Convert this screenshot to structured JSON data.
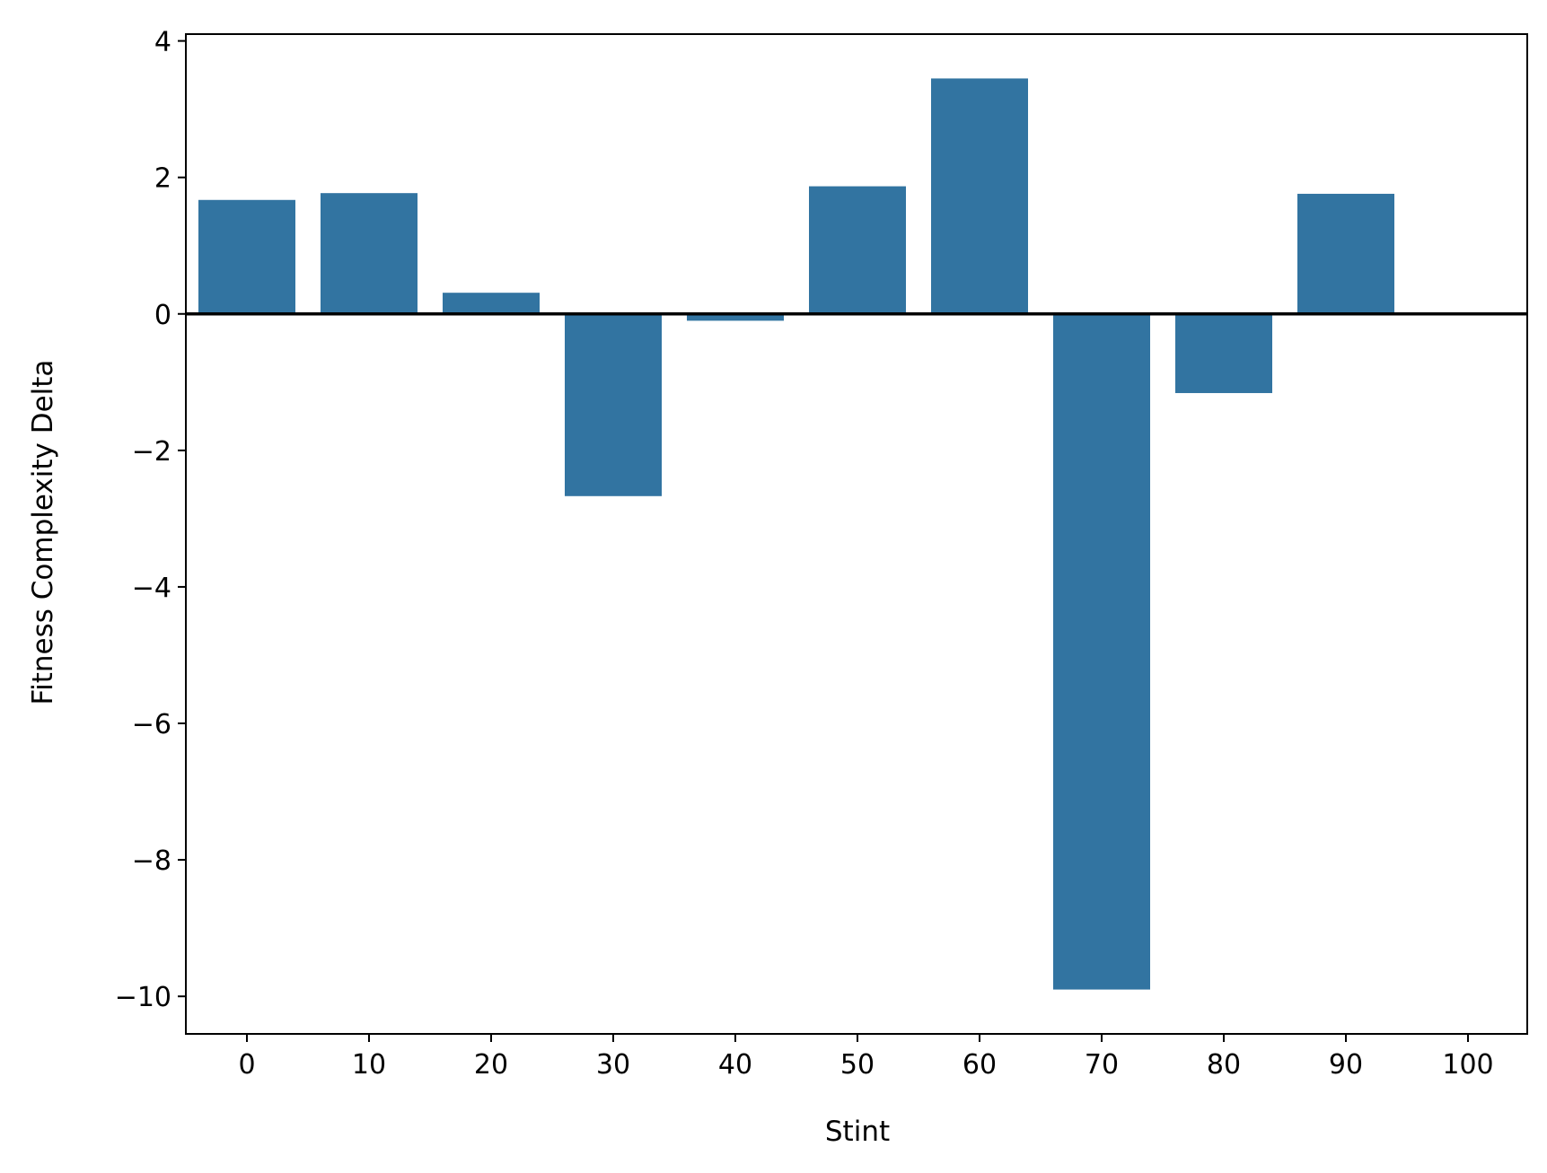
{
  "chart_data": {
    "type": "bar",
    "title": "",
    "xlabel": "Stint",
    "ylabel": "Fitness Complexity Delta",
    "categories": [
      0,
      10,
      20,
      30,
      40,
      50,
      60,
      70,
      80,
      90,
      100
    ],
    "x_tick_labels": [
      "0",
      "10",
      "20",
      "30",
      "40",
      "50",
      "60",
      "70",
      "80",
      "90",
      "100"
    ],
    "values": [
      1.67,
      1.77,
      0.31,
      -2.67,
      -0.1,
      1.87,
      3.45,
      -9.9,
      -1.16,
      1.76,
      null
    ],
    "y_ticks": [
      4,
      2,
      0,
      -2,
      -4,
      -6,
      -8,
      -10
    ],
    "y_tick_labels": [
      "4",
      "2",
      "0",
      "−2",
      "−4",
      "−6",
      "−8",
      "−10"
    ],
    "ylim": [
      -10.55,
      4.1
    ],
    "bar_color": "#3274a1",
    "zero_line": true,
    "grid": false,
    "legend": "none"
  }
}
